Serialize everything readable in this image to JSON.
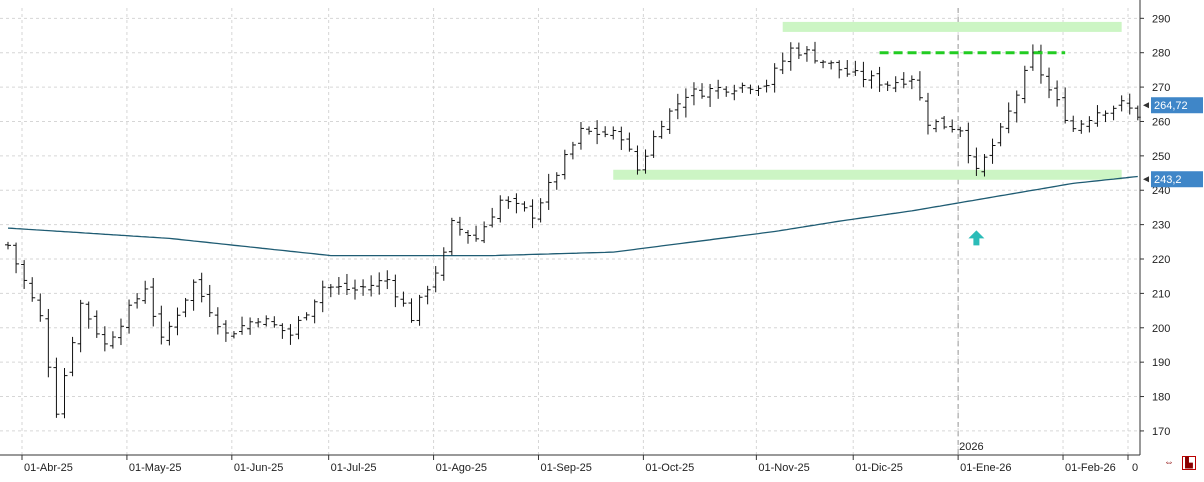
{
  "chart_data": {
    "type": "ohlc",
    "title": "",
    "xlabel": "",
    "ylabel": "",
    "ylim": [
      163,
      293
    ],
    "y_ticks": [
      170,
      180,
      190,
      200,
      210,
      220,
      230,
      240,
      250,
      260,
      270,
      280,
      290
    ],
    "x_tick_labels": [
      "01-Abr-25",
      "01-May-25",
      "01-Jun-25",
      "01-Jul-25",
      "01-Ago-25",
      "01-Sep-25",
      "01-Oct-25",
      "01-Nov-25",
      "01-Dic-25",
      "01-Ene-26",
      "01-Feb-26",
      "0"
    ],
    "year_marker": "2026",
    "grid": true,
    "last_price_label": "264,72",
    "moving_average_label": "243,2",
    "price_path": [
      [
        0,
        224
      ],
      [
        4,
        203
      ],
      [
        6,
        176
      ],
      [
        9,
        207
      ],
      [
        12,
        195
      ],
      [
        17,
        212
      ],
      [
        19,
        196
      ],
      [
        23,
        213
      ],
      [
        27,
        198
      ],
      [
        31,
        203
      ],
      [
        35,
        198
      ],
      [
        39,
        212
      ],
      [
        43,
        211
      ],
      [
        47,
        214
      ],
      [
        50,
        203
      ],
      [
        54,
        221
      ],
      [
        55,
        230
      ],
      [
        58,
        226
      ],
      [
        61,
        237
      ],
      [
        65,
        233
      ],
      [
        68,
        245
      ],
      [
        71,
        257
      ],
      [
        76,
        256
      ],
      [
        78,
        246
      ],
      [
        81,
        260
      ],
      [
        84,
        268
      ],
      [
        89,
        270
      ],
      [
        94,
        271
      ],
      [
        97,
        281
      ],
      [
        99,
        280
      ],
      [
        104,
        274
      ],
      [
        109,
        271
      ],
      [
        112,
        273
      ],
      [
        114,
        260
      ],
      [
        118,
        258
      ],
      [
        120,
        245
      ],
      [
        123,
        257
      ],
      [
        127,
        279
      ],
      [
        129,
        269
      ],
      [
        132,
        258
      ],
      [
        135,
        263
      ],
      [
        138,
        265
      ],
      [
        140,
        262
      ]
    ],
    "ma_path": [
      [
        0,
        229
      ],
      [
        20,
        226
      ],
      [
        40,
        221
      ],
      [
        60,
        221
      ],
      [
        75,
        222
      ],
      [
        85,
        225
      ],
      [
        95,
        228
      ],
      [
        103,
        231
      ],
      [
        112,
        234
      ],
      [
        122,
        238
      ],
      [
        132,
        242
      ],
      [
        140,
        244
      ]
    ],
    "annotations": [
      {
        "kind": "resistance-zone",
        "y": 287.5,
        "from": 96,
        "to": 138,
        "color": "#ccf5c4"
      },
      {
        "kind": "resistance-line-dashed",
        "y": 280,
        "from": 108,
        "to": 131,
        "color": "#22cc22"
      },
      {
        "kind": "support-zone",
        "y": 244.5,
        "from": 75,
        "to": 138,
        "color": "#ccf5c4"
      },
      {
        "kind": "up-arrow",
        "y": 226,
        "at": 120,
        "color": "#2bbcb8"
      }
    ],
    "colors": {
      "bars": "#111111",
      "moving_average": "#1f5c73",
      "price_tag": "#3f86c8",
      "grid": "#d6d6d6"
    }
  }
}
